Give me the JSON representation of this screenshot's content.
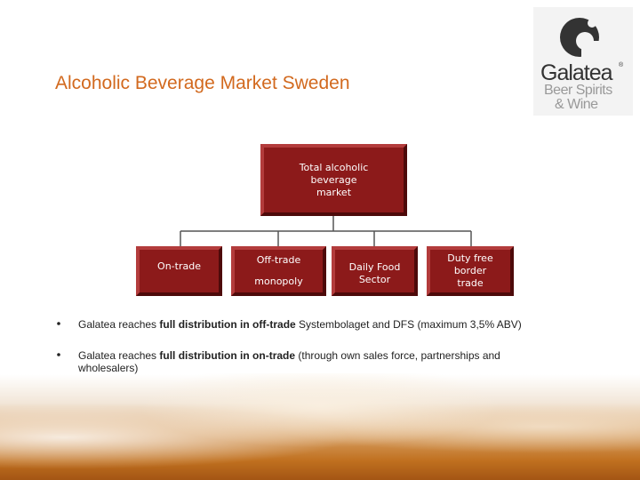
{
  "header": {
    "title": "Alcoholic Beverage Market Sweden"
  },
  "logo": {
    "name": "Galatea",
    "mark": "®",
    "tagline": [
      "Beer Spirits",
      "& Wine"
    ]
  },
  "diagram": {
    "root": [
      "Total alcoholic",
      "beverage",
      "market"
    ],
    "children": [
      [
        "On-trade"
      ],
      [
        "Off-trade",
        "monopoly"
      ],
      [
        "Daily Food",
        "Sector"
      ],
      [
        "Duty free",
        "border",
        "trade"
      ]
    ]
  },
  "bullets": [
    {
      "before": "Galatea reaches ",
      "bold": "full distribution in off-trade",
      "after": " Systembolaget and DFS (maximum 3,5% ABV)"
    },
    {
      "before": "Galatea reaches ",
      "bold": "full distribution in on-trade",
      "after": " (through own sales force, partnerships and wholesalers)"
    }
  ]
}
